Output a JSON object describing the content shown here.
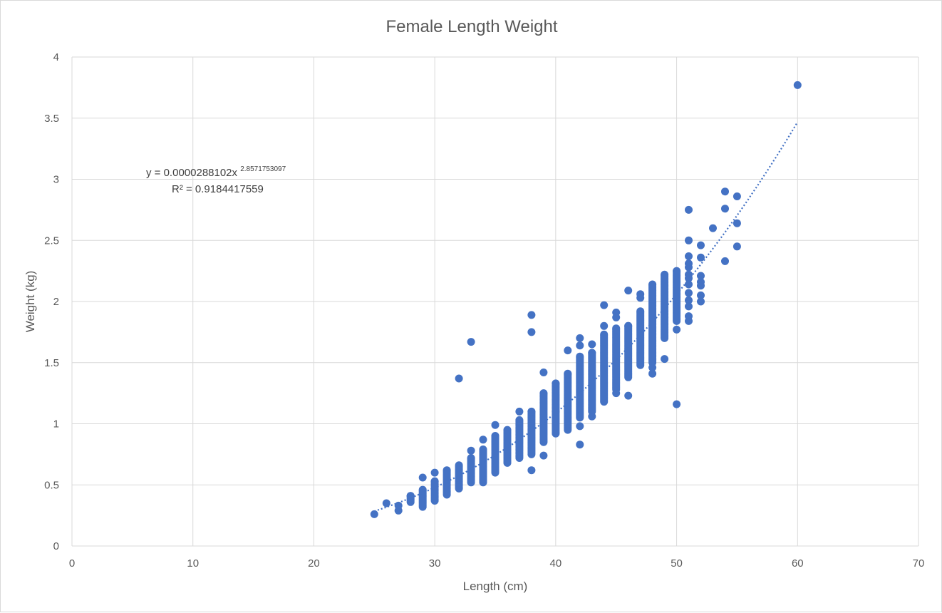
{
  "chart_data": {
    "type": "scatter",
    "title": "Female Length Weight",
    "xlabel": "Length (cm)",
    "ylabel": "Weight (kg)",
    "xlim": [
      0,
      70
    ],
    "ylim": [
      0,
      4
    ],
    "x_ticks": [
      "0",
      "10",
      "20",
      "30",
      "40",
      "50",
      "60",
      "70"
    ],
    "y_ticks": [
      "0",
      "0.5",
      "1",
      "1.5",
      "2",
      "2.5",
      "3",
      "3.5",
      "4"
    ],
    "grid": true,
    "legend": "none",
    "marker_color": "#4472c4",
    "trendline": {
      "type": "power",
      "coefficient": 2.88102e-05,
      "exponent": 2.8571753097,
      "x_range": [
        25,
        60
      ],
      "equation_base": "y = 0.0000288102x",
      "equation_exponent": "2.8571753097",
      "r_squared_text": "R² = 0.9184417559"
    },
    "ranges": [
      [
        28,
        0.36,
        0.41
      ],
      [
        29,
        0.32,
        0.46
      ],
      [
        30,
        0.37,
        0.53
      ],
      [
        31,
        0.42,
        0.62
      ],
      [
        32,
        0.47,
        0.66
      ],
      [
        33,
        0.52,
        0.72
      ],
      [
        34,
        0.52,
        0.79
      ],
      [
        35,
        0.6,
        0.9
      ],
      [
        36,
        0.68,
        0.95
      ],
      [
        37,
        0.72,
        1.03
      ],
      [
        38,
        0.75,
        1.1
      ],
      [
        39,
        0.85,
        1.25
      ],
      [
        40,
        0.92,
        1.33
      ],
      [
        41,
        0.95,
        1.41
      ],
      [
        42,
        1.05,
        1.55
      ],
      [
        43,
        1.1,
        1.58
      ],
      [
        44,
        1.18,
        1.73
      ],
      [
        45,
        1.28,
        1.78
      ],
      [
        46,
        1.38,
        1.8
      ],
      [
        47,
        1.48,
        1.92
      ],
      [
        48,
        1.5,
        2.14
      ],
      [
        49,
        1.7,
        2.22
      ],
      [
        50,
        1.84,
        2.25
      ]
    ],
    "points": [
      [
        25,
        0.26
      ],
      [
        26,
        0.35
      ],
      [
        27,
        0.29
      ],
      [
        27,
        0.33
      ],
      [
        28,
        0.41
      ],
      [
        29,
        0.56
      ],
      [
        30,
        0.6
      ],
      [
        32,
        1.37
      ],
      [
        33,
        1.67
      ],
      [
        33,
        0.78
      ],
      [
        34,
        0.87
      ],
      [
        35,
        0.99
      ],
      [
        37,
        1.1
      ],
      [
        38,
        1.89
      ],
      [
        38,
        1.75
      ],
      [
        38,
        0.62
      ],
      [
        39,
        1.42
      ],
      [
        39,
        0.74
      ],
      [
        40,
        1.1
      ],
      [
        41,
        1.6
      ],
      [
        42,
        1.7
      ],
      [
        42,
        1.64
      ],
      [
        42,
        0.98
      ],
      [
        42,
        0.83
      ],
      [
        43,
        1.65
      ],
      [
        43,
        1.06
      ],
      [
        44,
        1.97
      ],
      [
        44,
        1.8
      ],
      [
        45,
        1.91
      ],
      [
        45,
        1.87
      ],
      [
        45,
        1.25
      ],
      [
        46,
        2.09
      ],
      [
        46,
        1.23
      ],
      [
        47,
        2.06
      ],
      [
        47,
        2.03
      ],
      [
        48,
        1.46
      ],
      [
        48,
        1.41
      ],
      [
        49,
        1.53
      ],
      [
        50,
        1.77
      ],
      [
        50,
        1.16
      ],
      [
        51,
        2.75
      ],
      [
        51,
        2.5
      ],
      [
        51,
        2.37
      ],
      [
        51,
        2.31
      ],
      [
        51,
        2.28
      ],
      [
        51,
        2.22
      ],
      [
        51,
        2.19
      ],
      [
        51,
        2.14
      ],
      [
        51,
        2.07
      ],
      [
        51,
        2.01
      ],
      [
        51,
        1.96
      ],
      [
        51,
        1.88
      ],
      [
        51,
        1.84
      ],
      [
        52,
        2.46
      ],
      [
        52,
        2.36
      ],
      [
        52,
        2.21
      ],
      [
        52,
        2.16
      ],
      [
        52,
        2.13
      ],
      [
        52,
        2.05
      ],
      [
        52,
        2.0
      ],
      [
        53,
        2.6
      ],
      [
        54,
        2.9
      ],
      [
        54,
        2.76
      ],
      [
        54,
        2.33
      ],
      [
        55,
        2.86
      ],
      [
        55,
        2.64
      ],
      [
        55,
        2.45
      ],
      [
        60,
        3.77
      ]
    ]
  }
}
